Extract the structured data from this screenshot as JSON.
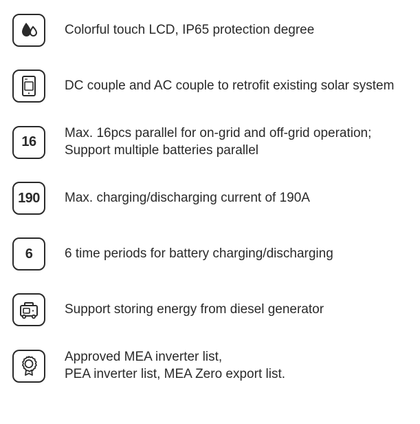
{
  "colors": {
    "stroke": "#2a2a2a",
    "fill": "#2a2a2a",
    "background": "#ffffff",
    "text": "#2a2a2a"
  },
  "icon_style": {
    "box_size": 48,
    "border_radius": 10,
    "border_width": 2.5,
    "number_fontsize": 20,
    "number_fontweight": 700
  },
  "text_style": {
    "fontsize": 19,
    "lineheight": 1.3,
    "fontweight": 400
  },
  "features": [
    {
      "icon": "droplets",
      "text": "Colorful touch LCD, IP65 protection degree"
    },
    {
      "icon": "device-screen",
      "text": "DC couple and AC couple to retrofit existing solar system"
    },
    {
      "icon": "number",
      "number": "16",
      "text": "Max. 16pcs parallel for on-grid and off-grid operation; Support multiple batteries parallel"
    },
    {
      "icon": "number",
      "number": "190",
      "text": "Max. charging/discharging current of 190A"
    },
    {
      "icon": "number",
      "number": "6",
      "text": "6 time periods for battery charging/discharging"
    },
    {
      "icon": "generator",
      "text": "Support storing energy from diesel generator"
    },
    {
      "icon": "award-badge",
      "text": "Approved MEA inverter list,\nPEA inverter list, MEA Zero export list."
    }
  ]
}
